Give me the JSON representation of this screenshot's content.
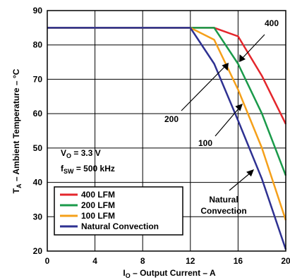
{
  "chart_data": {
    "type": "line",
    "xlabel": {
      "main": "I",
      "sub": "O",
      "rest": " – Output Current – A"
    },
    "ylabel": {
      "main": "T",
      "sub": "A",
      "rest": " – Ambient Temperature – °C"
    },
    "xlim": [
      0,
      20
    ],
    "ylim": [
      20,
      90
    ],
    "xticks": [
      0,
      4,
      8,
      12,
      16,
      20
    ],
    "yticks": [
      20,
      30,
      40,
      50,
      60,
      70,
      80,
      90
    ],
    "grid": true,
    "legend_position": "bottom-left",
    "series": [
      {
        "name": "400 LFM",
        "color": "#e4262c",
        "points": [
          [
            0,
            85
          ],
          [
            12,
            85
          ],
          [
            14,
            85
          ],
          [
            16,
            82.5
          ],
          [
            18,
            71
          ],
          [
            20,
            57
          ]
        ]
      },
      {
        "name": "200 LFM",
        "color": "#1a9a4a",
        "points": [
          [
            0,
            85
          ],
          [
            12,
            85
          ],
          [
            14,
            85
          ],
          [
            16,
            74.5
          ],
          [
            18,
            60
          ],
          [
            20,
            42
          ]
        ]
      },
      {
        "name": "100 LFM",
        "color": "#f5a01a",
        "points": [
          [
            0,
            85
          ],
          [
            12,
            85
          ],
          [
            14,
            81.5
          ],
          [
            16,
            67
          ],
          [
            18,
            50
          ],
          [
            20,
            29
          ]
        ]
      },
      {
        "name": "Natural Convection",
        "color": "#2e3192",
        "points": [
          [
            0,
            85
          ],
          [
            12,
            85
          ],
          [
            14,
            74.5
          ],
          [
            16,
            58
          ],
          [
            18,
            41
          ],
          [
            20,
            20.5
          ]
        ]
      }
    ],
    "conditions": {
      "vo": {
        "main": "V",
        "sub": "O",
        "rest": " = 3.3 V"
      },
      "fsw": {
        "main": "f",
        "sub": "SW",
        "rest": " = 500 kHz"
      }
    },
    "annotations": [
      {
        "text": "400"
      },
      {
        "text": "200"
      },
      {
        "text": "100"
      },
      {
        "text": "Natural",
        "text2": "Convection"
      }
    ]
  }
}
